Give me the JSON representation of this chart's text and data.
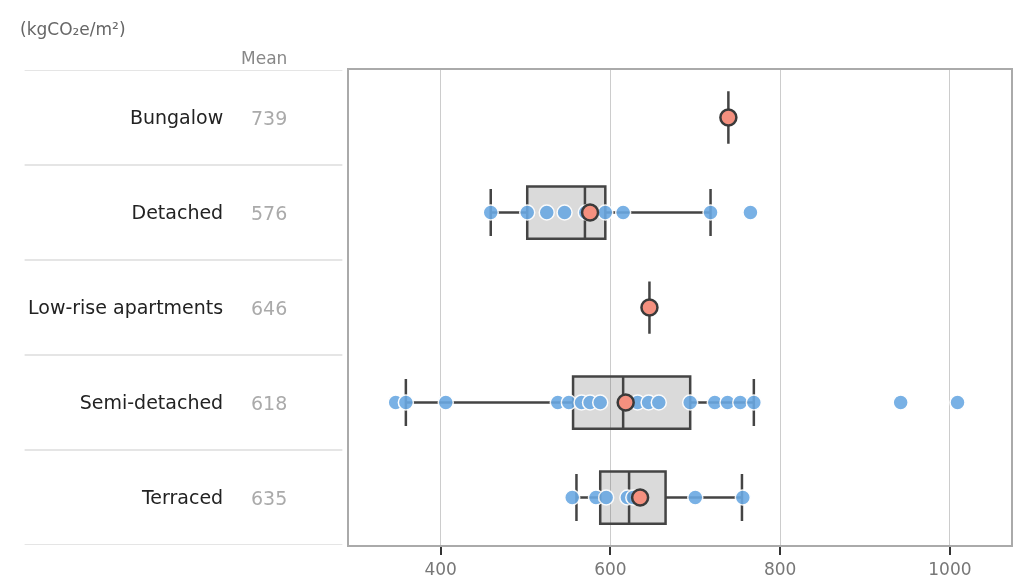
{
  "chart_data": {
    "type": "box",
    "orientation": "horizontal",
    "xlabel": "(kgCO₂e/m²)",
    "categories": [
      "Bungalow",
      "Detached",
      "Low-rise apartments",
      "Semi-detached",
      "Terraced"
    ],
    "boxes": [
      {
        "low": 739,
        "q1": 739,
        "median": 739,
        "q3": 739,
        "high": 739
      },
      {
        "low": 459,
        "q1": 502,
        "median": 570,
        "q3": 594,
        "high": 718
      },
      {
        "low": 646,
        "q1": 646,
        "median": 646,
        "q3": 646,
        "high": 646
      },
      {
        "low": 359,
        "q1": 556,
        "median": 615,
        "q3": 694,
        "high": 769
      },
      {
        "low": 560,
        "q1": 588,
        "median": 622,
        "q3": 665,
        "high": 755
      }
    ],
    "color": "#444444",
    "xlim": [
      292,
      1072
    ],
    "xticks": [
      400,
      600,
      800,
      1000
    ],
    "grid": "x",
    "legend": false,
    "marker": "circle",
    "series": [
      {
        "type": "scatter",
        "color": "#6aa9e3",
        "x": [
          "Detached",
          "Detached",
          "Detached",
          "Detached",
          "Detached",
          "Detached",
          "Detached",
          "Detached",
          "Detached",
          "Semi-detached",
          "Semi-detached",
          "Semi-detached",
          "Semi-detached",
          "Semi-detached",
          "Semi-detached",
          "Semi-detached",
          "Semi-detached",
          "Semi-detached",
          "Semi-detached",
          "Semi-detached",
          "Semi-detached",
          "Semi-detached",
          "Semi-detached",
          "Semi-detached",
          "Semi-detached",
          "Semi-detached",
          "Semi-detached",
          "Terraced",
          "Terraced",
          "Terraced",
          "Terraced",
          "Terraced",
          "Terraced",
          "Terraced"
        ],
        "values": [
          459,
          502,
          525,
          546,
          571,
          594,
          615,
          718,
          765,
          347,
          359,
          406,
          538,
          551,
          566,
          576,
          588,
          632,
          645,
          657,
          694,
          723,
          738,
          753,
          769,
          942,
          1009,
          555,
          583,
          595,
          620,
          627,
          700,
          756
        ]
      },
      {
        "type": "scatter",
        "name": "Mean",
        "color": "#f4907f",
        "x": [
          "Bungalow",
          "Detached",
          "Low-rise apartments",
          "Semi-detached",
          "Terraced"
        ],
        "values": [
          739,
          576,
          646,
          618,
          635
        ],
        "value_labels": [
          "739",
          "576",
          "646",
          "618",
          "635"
        ]
      }
    ]
  }
}
